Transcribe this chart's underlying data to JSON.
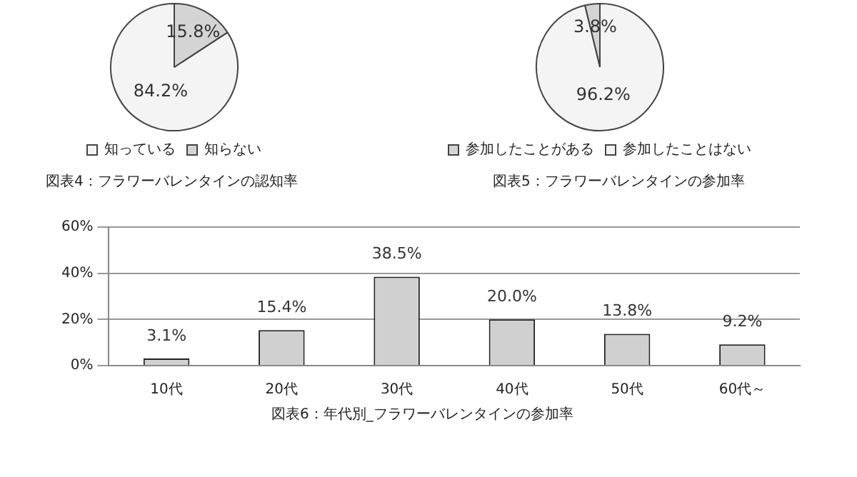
{
  "chart_data": [
    {
      "type": "pie",
      "title": "図表4：フラワーバレンタインの認知率",
      "categories": [
        "知っている",
        "知らない"
      ],
      "values": [
        84.2,
        15.8
      ],
      "colors": [
        "#f4f4f4",
        "#d4d4d4"
      ],
      "value_labels": [
        "84.2%",
        "15.8%"
      ],
      "legend": "bottom"
    },
    {
      "type": "pie",
      "title": "図表5：フラワーバレンタインの参加率",
      "categories": [
        "参加したことがある",
        "参加したことはない"
      ],
      "values": [
        3.8,
        96.2
      ],
      "colors": [
        "#d4d4d4",
        "#f4f4f4"
      ],
      "value_labels": [
        "3.8%",
        "96.2%"
      ],
      "legend": "bottom"
    },
    {
      "type": "bar",
      "title": "図表6：年代別_フラワーバレンタインの参加率",
      "categories": [
        "10代",
        "20代",
        "30代",
        "40代",
        "50代",
        "60代～"
      ],
      "values": [
        3.1,
        15.4,
        38.5,
        20.0,
        13.8,
        9.2
      ],
      "color": "#d0d0d0",
      "value_labels": [
        "3.1%",
        "15.4%",
        "38.5%",
        "20.0%",
        "13.8%",
        "9.2%"
      ],
      "ylim": [
        0,
        60
      ],
      "yticks": [
        {
          "value": 0,
          "label": "0%"
        },
        {
          "value": 20,
          "label": "20%"
        },
        {
          "value": 40,
          "label": "40%"
        },
        {
          "value": 60,
          "label": "60%"
        }
      ],
      "grid": "y",
      "legend": false
    }
  ]
}
